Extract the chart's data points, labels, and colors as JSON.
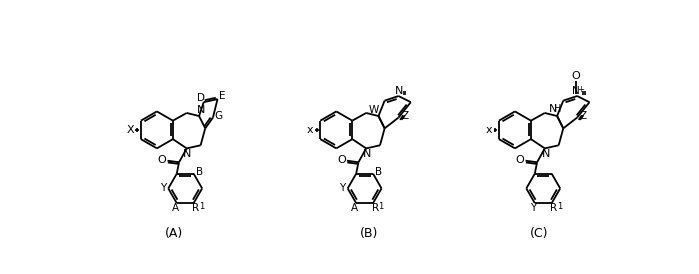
{
  "background_color": "#ffffff",
  "figsize": [
    6.99,
    2.74
  ],
  "dpi": 100,
  "label_A": "(A)",
  "label_B": "(B)",
  "label_C": "(C)"
}
